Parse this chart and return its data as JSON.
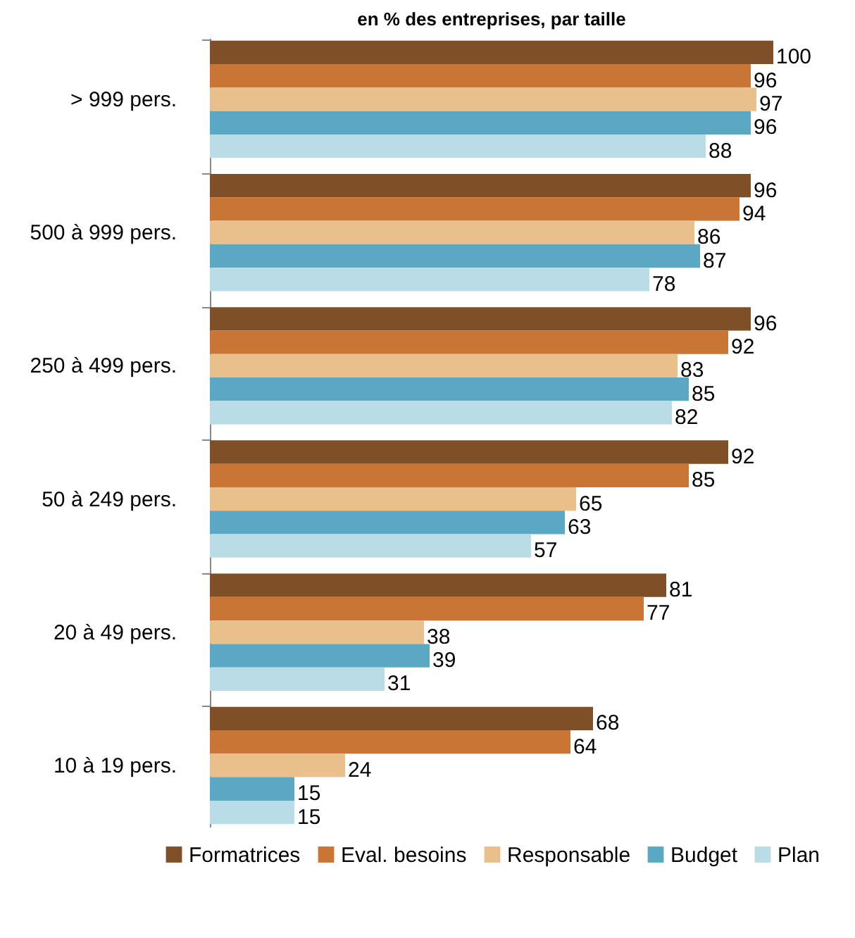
{
  "chart_data": {
    "type": "bar",
    "orientation": "horizontal",
    "title": "en % des entreprises, par taille",
    "categories": [
      "> 999 pers.",
      "500 à 999 pers.",
      "250 à 499 pers.",
      "50 à 249 pers.",
      "20 à 49 pers.",
      "10 à 19 pers."
    ],
    "series": [
      {
        "name": "Formatrices",
        "color": "#7f5028",
        "values": [
          100,
          96,
          96,
          92,
          81,
          68
        ]
      },
      {
        "name": "Eval. besoins",
        "color": "#c87535",
        "values": [
          96,
          94,
          92,
          85,
          77,
          64
        ]
      },
      {
        "name": "Responsable",
        "color": "#e9c08c",
        "values": [
          97,
          86,
          83,
          65,
          38,
          24
        ]
      },
      {
        "name": "Budget",
        "color": "#5aa8c4",
        "values": [
          96,
          87,
          85,
          63,
          39,
          15
        ]
      },
      {
        "name": "Plan",
        "color": "#b9dce6",
        "values": [
          88,
          78,
          82,
          57,
          31,
          15
        ]
      }
    ],
    "xlim": [
      0,
      100
    ],
    "tick_labels": "y",
    "data_labels": true,
    "legend": "bottom"
  }
}
